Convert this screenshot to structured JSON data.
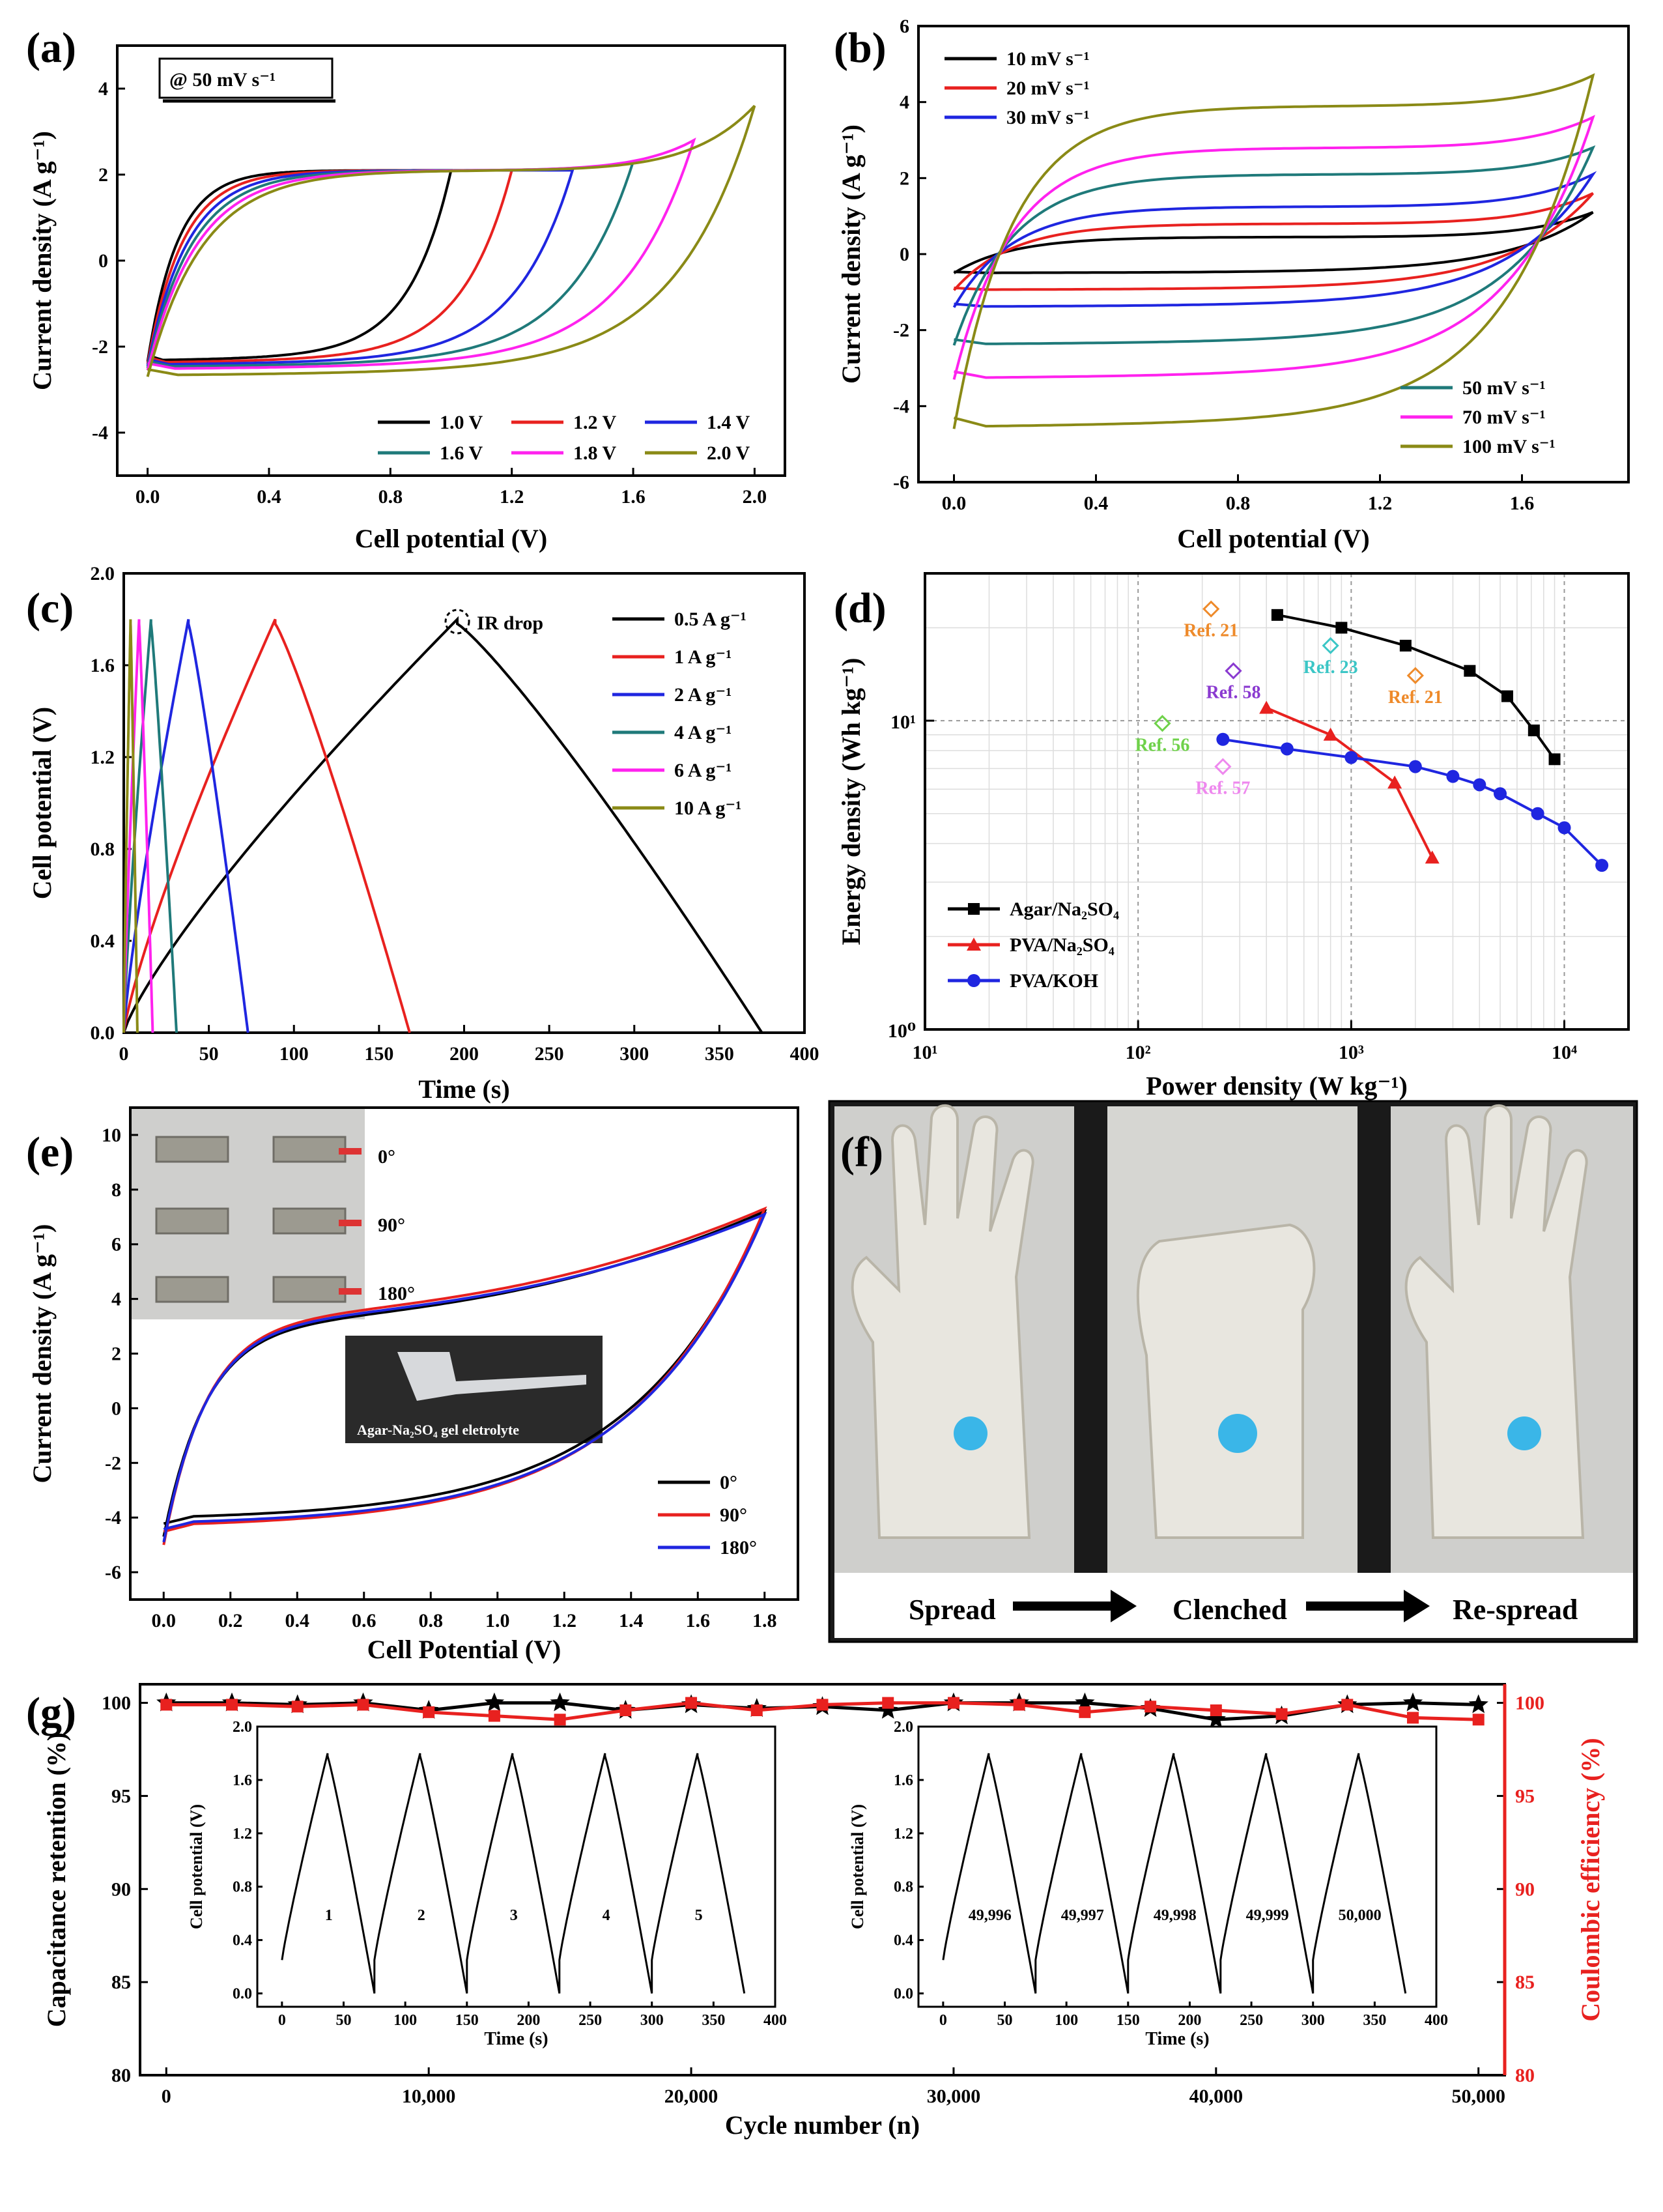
{
  "panels": {
    "a": {
      "label": "(a)",
      "note": "@ 50 mV s⁻¹",
      "xlabel": "Cell potential (V)",
      "ylabel": "Current density (A g⁻¹)",
      "xticks": [
        "0.0",
        "0.4",
        "0.8",
        "1.2",
        "1.6",
        "2.0"
      ],
      "yticks": [
        "-4",
        "-2",
        "0",
        "2",
        "4"
      ],
      "legend": [
        "1.0 V",
        "1.2 V",
        "1.4 V",
        "1.6 V",
        "1.8 V",
        "2.0 V"
      ]
    },
    "b": {
      "label": "(b)",
      "xlabel": "Cell potential (V)",
      "ylabel": "Current density (A g⁻¹)",
      "xticks": [
        "0.0",
        "0.4",
        "0.8",
        "1.2",
        "1.6"
      ],
      "yticks": [
        "-6",
        "-4",
        "-2",
        "0",
        "2",
        "4",
        "6"
      ],
      "legend": [
        "10 mV s⁻¹",
        "20 mV s⁻¹",
        "30 mV s⁻¹",
        "50 mV s⁻¹",
        "70 mV s⁻¹",
        "100 mV s⁻¹"
      ]
    },
    "c": {
      "label": "(c)",
      "xlabel": "Time (s)",
      "ylabel": "Cell potential (V)",
      "annotation": "IR drop",
      "xticks": [
        "0",
        "50",
        "100",
        "150",
        "200",
        "250",
        "300",
        "350",
        "400"
      ],
      "yticks": [
        "0.0",
        "0.4",
        "0.8",
        "1.2",
        "1.6",
        "2.0"
      ],
      "legend": [
        "0.5 A g⁻¹",
        "1 A g⁻¹",
        "2 A g⁻¹",
        "4 A g⁻¹",
        "6 A g⁻¹",
        "10 A g⁻¹"
      ]
    },
    "d": {
      "label": "(d)",
      "xlabel": "Power density (W kg⁻¹)",
      "ylabel": "Energy density (Wh kg⁻¹)",
      "legend": [
        "Agar/Na₂SO₄",
        "PVA/Na₂SO₄",
        "PVA/KOH"
      ],
      "refs": [
        "Ref. 21",
        "Ref. 23",
        "Ref. 21",
        "Ref. 58",
        "Ref. 56",
        "Ref. 57"
      ]
    },
    "e": {
      "label": "(e)",
      "xlabel": "Cell Potential (V)",
      "ylabel": "Current density (A g⁻¹)",
      "xticks": [
        "0.0",
        "0.2",
        "0.4",
        "0.6",
        "0.8",
        "1.0",
        "1.2",
        "1.4",
        "1.6",
        "1.8"
      ],
      "yticks": [
        "-6",
        "-4",
        "-2",
        "0",
        "2",
        "4",
        "6",
        "8",
        "10"
      ],
      "legend": [
        "0°",
        "90°",
        "180°"
      ],
      "photo_labels": [
        "0°",
        "90°",
        "180°"
      ],
      "gel_caption": "Agar-Na₂SO₄ gel eletrolyte"
    },
    "f": {
      "label": "(f)",
      "steps": [
        "Spread",
        "Clenched",
        "Re-spread"
      ]
    },
    "g": {
      "label": "(g)",
      "xlabel": "Cycle number (n)",
      "ylabel_left": "Capacitance retention (%)",
      "ylabel_right": "Coulombic efficiency (%)",
      "xticks": [
        "0",
        "10,000",
        "20,000",
        "30,000",
        "40,000",
        "50,000"
      ],
      "yticks": [
        "80",
        "85",
        "90",
        "95",
        "100"
      ],
      "inset1_numbers": [
        "1",
        "2",
        "3",
        "4",
        "5"
      ],
      "inset2_numbers": [
        "49,996",
        "49,997",
        "49,998",
        "49,999",
        "50,000"
      ],
      "inset_xlabel": "Time (s)",
      "inset_ylabel": "Cell potential (V)",
      "inset_xticks": [
        "0",
        "50",
        "100",
        "150",
        "200",
        "250",
        "300",
        "350",
        "400"
      ],
      "inset_yticks": [
        "0.0",
        "0.4",
        "0.8",
        "1.2",
        "1.6",
        "2.0"
      ]
    }
  },
  "colors": {
    "black": "#000000",
    "red": "#e8211f",
    "blue": "#1f26e0",
    "teal": "#1f7a7a",
    "magenta": "#ff22ee",
    "olive": "#8a8a16",
    "orange": "#ee8a2a",
    "cyan": "#3bc6c6",
    "purple": "#8a3ad0",
    "green": "#6fd14a",
    "pink": "#ee88ee"
  },
  "chart_data": [
    {
      "panel": "a",
      "type": "line",
      "title": "",
      "xlabel": "Cell potential (V)",
      "ylabel": "Current density (A g⁻¹)",
      "xlim": [
        -0.1,
        2.1
      ],
      "ylim": [
        -5,
        5
      ],
      "series": [
        {
          "name": "1.0 V",
          "vmax": 1.0,
          "top": 2.1,
          "bottom": -2.35,
          "peak": 2.1
        },
        {
          "name": "1.2 V",
          "vmax": 1.2,
          "top": 2.1,
          "bottom": -2.4,
          "peak": 2.1
        },
        {
          "name": "1.4 V",
          "vmax": 1.4,
          "top": 2.1,
          "bottom": -2.45,
          "peak": 2.1
        },
        {
          "name": "1.6 V",
          "vmax": 1.6,
          "top": 2.1,
          "bottom": -2.5,
          "peak": 2.3
        },
        {
          "name": "1.8 V",
          "vmax": 1.8,
          "top": 2.1,
          "bottom": -2.55,
          "peak": 2.8
        },
        {
          "name": "2.0 V",
          "vmax": 2.0,
          "top": 2.1,
          "bottom": -2.7,
          "peak": 3.6
        }
      ]
    },
    {
      "panel": "b",
      "type": "line",
      "xlabel": "Cell potential (V)",
      "ylabel": "Current density (A g⁻¹)",
      "xlim": [
        -0.1,
        1.9
      ],
      "ylim": [
        -6,
        6
      ],
      "series": [
        {
          "name": "10 mV s⁻¹",
          "top": 0.45,
          "bottom": -0.5,
          "peak": 1.1
        },
        {
          "name": "20 mV s⁻¹",
          "top": 0.8,
          "bottom": -0.95,
          "peak": 1.6
        },
        {
          "name": "30 mV s⁻¹",
          "top": 1.25,
          "bottom": -1.4,
          "peak": 2.1
        },
        {
          "name": "50 mV s⁻¹",
          "top": 2.1,
          "bottom": -2.4,
          "peak": 2.8
        },
        {
          "name": "70 mV s⁻¹",
          "top": 2.8,
          "bottom": -3.3,
          "peak": 3.6
        },
        {
          "name": "100 mV s⁻¹",
          "top": 3.9,
          "bottom": -4.6,
          "peak": 4.7
        }
      ]
    },
    {
      "panel": "c",
      "type": "line",
      "xlabel": "Time (s)",
      "ylabel": "Cell potential (V)",
      "xlim": [
        0,
        400
      ],
      "ylim": [
        0,
        2.0
      ],
      "series": [
        {
          "name": "0.5 A g⁻¹",
          "t_peak": 196,
          "t_end": 375
        },
        {
          "name": "1 A g⁻¹",
          "t_peak": 89,
          "t_end": 168
        },
        {
          "name": "2 A g⁻¹",
          "t_peak": 38,
          "t_end": 73
        },
        {
          "name": "4 A g⁻¹",
          "t_peak": 16,
          "t_end": 31
        },
        {
          "name": "6 A g⁻¹",
          "t_peak": 9,
          "t_end": 17
        },
        {
          "name": "10 A g⁻¹",
          "t_peak": 4,
          "t_end": 8
        }
      ]
    },
    {
      "panel": "d",
      "type": "scatter",
      "xlabel": "Power density (W kg⁻¹)",
      "ylabel": "Energy density (Wh kg⁻¹)",
      "xscale": "log",
      "yscale": "log",
      "xlim": [
        10,
        20000
      ],
      "ylim": [
        1,
        30
      ],
      "xticks": [
        "10¹",
        "10²",
        "10³",
        "10⁴"
      ],
      "yticks": [
        "10⁰",
        "10¹"
      ],
      "series": [
        {
          "name": "Agar/Na₂SO₄",
          "x": [
            450,
            900,
            1800,
            3600,
            5400,
            7200,
            9000
          ],
          "y": [
            22,
            20,
            17.5,
            14.5,
            12,
            9.3,
            7.5
          ]
        },
        {
          "name": "PVA/Na₂SO₄",
          "x": [
            400,
            800,
            1600,
            2400
          ],
          "y": [
            11,
            9,
            6.3,
            3.6
          ]
        },
        {
          "name": "PVA/KOH",
          "x": [
            250,
            500,
            1000,
            2000,
            3000,
            4000,
            5000,
            7500,
            10000,
            15000
          ],
          "y": [
            8.7,
            8.1,
            7.6,
            7.1,
            6.6,
            6.2,
            5.8,
            5.0,
            4.5,
            3.4
          ]
        }
      ],
      "references": [
        {
          "label": "Ref. 21",
          "x": 220,
          "y": 23
        },
        {
          "label": "Ref. 23",
          "x": 800,
          "y": 17.5
        },
        {
          "label": "Ref. 21",
          "x": 2000,
          "y": 14
        },
        {
          "label": "Ref. 58",
          "x": 280,
          "y": 14.5
        },
        {
          "label": "Ref. 56",
          "x": 130,
          "y": 9.8
        },
        {
          "label": "Ref. 57",
          "x": 250,
          "y": 7.1
        }
      ]
    },
    {
      "panel": "e",
      "type": "line",
      "xlabel": "Cell Potential (V)",
      "ylabel": "Current density (A g⁻¹)",
      "xlim": [
        -0.1,
        1.9
      ],
      "ylim": [
        -7,
        11
      ],
      "series": [
        {
          "name": "0°",
          "top_start": 2.2,
          "peak": 7.2,
          "bottom": -4.7
        },
        {
          "name": "90°",
          "top_start": 2.4,
          "peak": 7.3,
          "bottom": -5.0
        },
        {
          "name": "180°",
          "top_start": 2.3,
          "peak": 7.1,
          "bottom": -4.9
        }
      ]
    },
    {
      "panel": "g",
      "type": "line",
      "xlabel": "Cycle number (n)",
      "ylabel": "Capacitance retention (%)",
      "xlim": [
        -1000,
        51000
      ],
      "ylim": [
        80,
        101
      ],
      "series": [
        {
          "name": "Capacitance retention",
          "axis": "left",
          "x": [
            0,
            2500,
            5000,
            7500,
            10000,
            12500,
            15000,
            17500,
            20000,
            22500,
            25000,
            27500,
            30000,
            32500,
            35000,
            37500,
            40000,
            42500,
            45000,
            47500,
            50000
          ],
          "y": [
            100,
            100,
            99.9,
            100,
            99.6,
            100,
            100,
            99.6,
            99.9,
            99.7,
            99.8,
            99.6,
            100,
            100,
            100,
            99.7,
            99.1,
            99.3,
            99.9,
            100,
            99.9
          ]
        },
        {
          "name": "Coulombic efficiency",
          "axis": "right",
          "x": [
            0,
            2500,
            5000,
            7500,
            10000,
            12500,
            15000,
            17500,
            20000,
            22500,
            25000,
            27500,
            30000,
            32500,
            35000,
            37500,
            40000,
            42500,
            45000,
            47500,
            50000
          ],
          "y": [
            99.9,
            99.9,
            99.8,
            99.9,
            99.5,
            99.3,
            99.1,
            99.6,
            100,
            99.6,
            99.9,
            100,
            100,
            99.9,
            99.5,
            99.8,
            99.6,
            99.4,
            99.9,
            99.2,
            99.1
          ]
        }
      ]
    }
  ]
}
